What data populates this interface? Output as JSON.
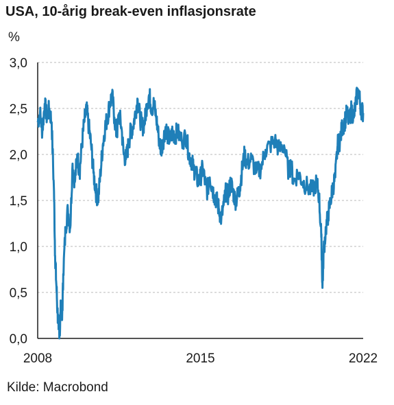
{
  "chart_data": {
    "type": "line",
    "title": "USA, 10-årig break-even inflasjonsrate",
    "ylabel": "%",
    "source": "Kilde: Macrobond",
    "ylim": [
      0,
      3
    ],
    "y_ticks": [
      "0,0",
      "0,5",
      "1,0",
      "1,5",
      "2,0",
      "2,5",
      "3,0"
    ],
    "x_ticks": [
      {
        "year": 2008,
        "label": "2008"
      },
      {
        "year": 2015,
        "label": "2015"
      },
      {
        "year": 2022,
        "label": "2022"
      }
    ],
    "xlim": [
      2008.0,
      2022.0
    ],
    "grid": true,
    "line_color": "#1f7fb8",
    "series": [
      {
        "x": [
          2008.0,
          2008.1,
          2008.2,
          2008.3,
          2008.4,
          2008.5,
          2008.6,
          2008.7,
          2008.75,
          2008.8,
          2008.85,
          2008.9,
          2008.95,
          2009.0,
          2009.05,
          2009.1,
          2009.2,
          2009.3,
          2009.4,
          2009.5,
          2009.6,
          2009.7,
          2009.8,
          2009.9,
          2010.0,
          2010.1,
          2010.2,
          2010.3,
          2010.4,
          2010.5,
          2010.6,
          2010.7,
          2010.8,
          2010.9,
          2011.0,
          2011.1,
          2011.2,
          2011.3,
          2011.4,
          2011.5,
          2011.6,
          2011.7,
          2011.8,
          2011.9,
          2012.0,
          2012.1,
          2012.2,
          2012.3,
          2012.4,
          2012.5,
          2012.6,
          2012.7,
          2012.8,
          2012.9,
          2013.0,
          2013.1,
          2013.2,
          2013.3,
          2013.4,
          2013.5,
          2013.6,
          2013.7,
          2013.8,
          2013.9,
          2014.0,
          2014.2,
          2014.4,
          2014.5,
          2014.6,
          2014.7,
          2014.8,
          2014.9,
          2015.0,
          2015.1,
          2015.2,
          2015.3,
          2015.4,
          2015.5,
          2015.6,
          2015.7,
          2015.8,
          2015.9,
          2016.0,
          2016.1,
          2016.2,
          2016.3,
          2016.4,
          2016.5,
          2016.6,
          2016.7,
          2016.8,
          2016.9,
          2017.0,
          2017.2,
          2017.4,
          2017.6,
          2017.8,
          2018.0,
          2018.2,
          2018.4,
          2018.6,
          2018.8,
          2018.9,
          2019.0,
          2019.2,
          2019.4,
          2019.6,
          2019.8,
          2020.0,
          2020.1,
          2020.2,
          2020.25,
          2020.3,
          2020.4,
          2020.5,
          2020.6,
          2020.7,
          2020.8,
          2020.9,
          2021.0,
          2021.1,
          2021.2,
          2021.3,
          2021.4,
          2021.5,
          2021.6,
          2021.7,
          2021.8,
          2021.9,
          2022.0
        ],
        "values": [
          2.35,
          2.45,
          2.25,
          2.55,
          2.4,
          2.5,
          2.35,
          1.6,
          0.9,
          0.6,
          0.3,
          0.1,
          0.05,
          0.4,
          0.2,
          0.7,
          1.2,
          1.4,
          1.2,
          1.9,
          1.7,
          2.0,
          1.8,
          2.1,
          2.35,
          2.5,
          2.3,
          2.1,
          1.8,
          1.6,
          1.5,
          1.8,
          2.1,
          2.3,
          2.4,
          2.55,
          2.65,
          2.4,
          2.2,
          2.45,
          2.3,
          2.0,
          1.95,
          2.1,
          2.25,
          2.3,
          2.45,
          2.6,
          2.4,
          2.3,
          2.35,
          2.55,
          2.65,
          2.5,
          2.55,
          2.4,
          2.2,
          2.05,
          2.15,
          2.3,
          2.2,
          2.15,
          2.25,
          2.2,
          2.25,
          2.15,
          2.2,
          2.0,
          1.95,
          1.85,
          1.8,
          1.7,
          1.75,
          1.85,
          1.7,
          1.6,
          1.75,
          1.65,
          1.55,
          1.5,
          1.4,
          1.3,
          1.45,
          1.6,
          1.55,
          1.7,
          1.6,
          1.5,
          1.55,
          1.65,
          1.85,
          2.0,
          1.9,
          1.95,
          1.8,
          1.85,
          2.05,
          2.1,
          2.15,
          2.05,
          2.1,
          1.8,
          1.9,
          1.7,
          1.8,
          1.7,
          1.65,
          1.6,
          1.7,
          1.55,
          1.1,
          0.55,
          0.95,
          1.2,
          1.35,
          1.5,
          1.65,
          1.75,
          2.1,
          2.15,
          2.3,
          2.35,
          2.45,
          2.35,
          2.5,
          2.4,
          2.6,
          2.7,
          2.5,
          2.45
        ]
      }
    ]
  }
}
